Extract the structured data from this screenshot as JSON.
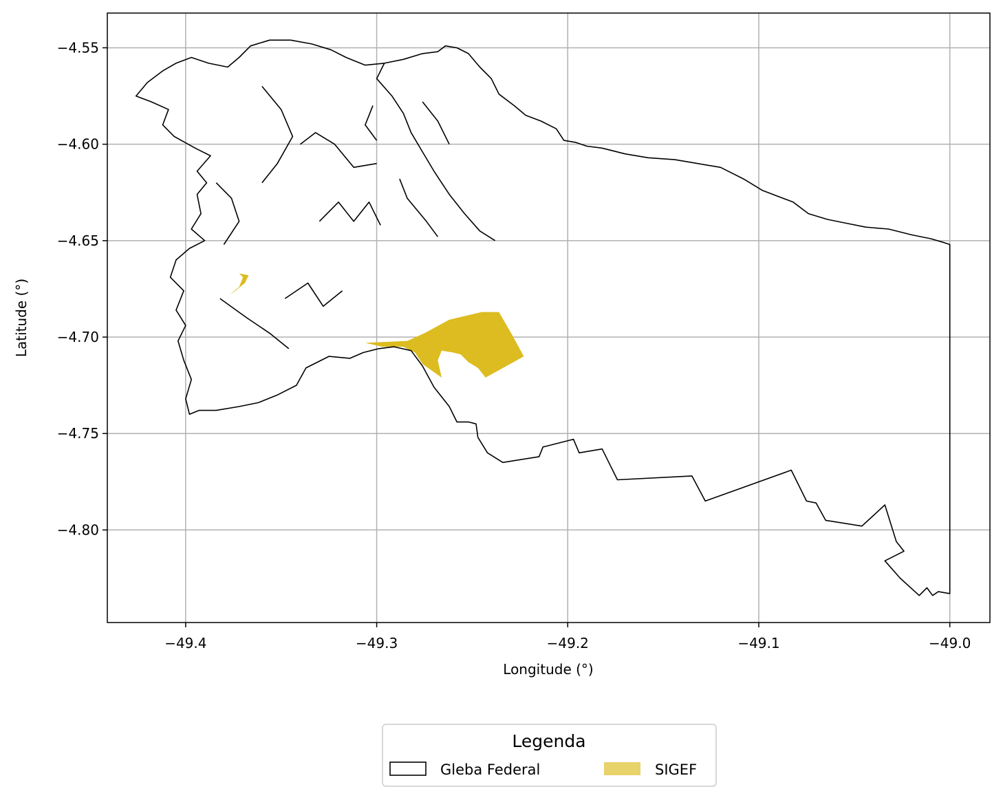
{
  "chart_data": {
    "type": "map",
    "xlabel": "Longitude (°)",
    "ylabel": "Latitude (°)",
    "xlim": [
      -49.441,
      -48.979
    ],
    "ylim": [
      -4.848,
      -4.532
    ],
    "xticks": [
      {
        "value": -49.4,
        "label": "−49.4"
      },
      {
        "value": -49.3,
        "label": "−49.3"
      },
      {
        "value": -49.2,
        "label": "−49.2"
      },
      {
        "value": -49.1,
        "label": "−49.1"
      },
      {
        "value": -49.0,
        "label": "−49.0"
      }
    ],
    "yticks": [
      {
        "value": -4.55,
        "label": "−4.55"
      },
      {
        "value": -4.6,
        "label": "−4.60"
      },
      {
        "value": -4.65,
        "label": "−4.65"
      },
      {
        "value": -4.7,
        "label": "−4.70"
      },
      {
        "value": -4.75,
        "label": "−4.75"
      },
      {
        "value": -4.8,
        "label": "−4.80"
      }
    ],
    "grid": true,
    "legend": {
      "title": "Legenda",
      "placement": "bottom-center",
      "entries": [
        {
          "label": "Gleba Federal",
          "style": "outline",
          "color": "#000000"
        },
        {
          "label": "SIGEF",
          "style": "fill",
          "color": "#e8d26a"
        }
      ]
    },
    "layers": [
      {
        "name": "Gleba Federal",
        "stroke": "#000000",
        "fill": "none",
        "polygons": [
          [
            [
              -49.296,
              -4.558
            ],
            [
              -49.286,
              -4.556
            ],
            [
              -49.276,
              -4.553
            ],
            [
              -49.268,
              -4.552
            ],
            [
              -49.264,
              -4.549
            ],
            [
              -49.258,
              -4.55
            ],
            [
              -49.252,
              -4.553
            ],
            [
              -49.246,
              -4.56
            ],
            [
              -49.24,
              -4.566
            ],
            [
              -49.236,
              -4.574
            ],
            [
              -49.228,
              -4.58
            ],
            [
              -49.222,
              -4.585
            ],
            [
              -49.214,
              -4.588
            ],
            [
              -49.206,
              -4.592
            ],
            [
              -49.202,
              -4.598
            ],
            [
              -49.196,
              -4.599
            ],
            [
              -49.19,
              -4.601
            ],
            [
              -49.182,
              -4.602
            ],
            [
              -49.17,
              -4.605
            ],
            [
              -49.158,
              -4.607
            ],
            [
              -49.144,
              -4.608
            ],
            [
              -49.132,
              -4.61
            ],
            [
              -49.12,
              -4.612
            ],
            [
              -49.108,
              -4.618
            ],
            [
              -49.098,
              -4.624
            ],
            [
              -49.09,
              -4.627
            ],
            [
              -49.082,
              -4.63
            ],
            [
              -49.074,
              -4.636
            ],
            [
              -49.064,
              -4.639
            ],
            [
              -49.054,
              -4.641
            ],
            [
              -49.044,
              -4.643
            ],
            [
              -49.032,
              -4.644
            ],
            [
              -49.02,
              -4.647
            ],
            [
              -49.01,
              -4.649
            ],
            [
              -49.003,
              -4.651
            ],
            [
              -49.0,
              -4.652
            ],
            [
              -49.0,
              -4.833
            ],
            [
              -49.006,
              -4.832
            ],
            [
              -49.009,
              -4.834
            ],
            [
              -49.012,
              -4.83
            ],
            [
              -49.016,
              -4.834
            ],
            [
              -49.026,
              -4.825
            ],
            [
              -49.034,
              -4.816
            ],
            [
              -49.024,
              -4.811
            ],
            [
              -49.028,
              -4.806
            ],
            [
              -49.034,
              -4.787
            ],
            [
              -49.046,
              -4.798
            ],
            [
              -49.065,
              -4.795
            ],
            [
              -49.07,
              -4.786
            ],
            [
              -49.075,
              -4.785
            ],
            [
              -49.083,
              -4.769
            ],
            [
              -49.128,
              -4.785
            ],
            [
              -49.135,
              -4.772
            ],
            [
              -49.174,
              -4.774
            ],
            [
              -49.182,
              -4.758
            ],
            [
              -49.194,
              -4.76
            ],
            [
              -49.197,
              -4.753
            ],
            [
              -49.213,
              -4.757
            ],
            [
              -49.215,
              -4.762
            ],
            [
              -49.234,
              -4.765
            ],
            [
              -49.242,
              -4.76
            ],
            [
              -49.247,
              -4.752
            ],
            [
              -49.248,
              -4.745
            ],
            [
              -49.252,
              -4.744
            ],
            [
              -49.258,
              -4.744
            ],
            [
              -49.262,
              -4.736
            ],
            [
              -49.27,
              -4.726
            ],
            [
              -49.276,
              -4.715
            ],
            [
              -49.282,
              -4.707
            ],
            [
              -49.291,
              -4.705
            ],
            [
              -49.299,
              -4.706
            ],
            [
              -49.307,
              -4.708
            ],
            [
              -49.314,
              -4.711
            ],
            [
              -49.325,
              -4.71
            ],
            [
              -49.337,
              -4.716
            ],
            [
              -49.342,
              -4.725
            ],
            [
              -49.352,
              -4.73
            ],
            [
              -49.362,
              -4.734
            ],
            [
              -49.372,
              -4.736
            ],
            [
              -49.384,
              -4.738
            ],
            [
              -49.393,
              -4.738
            ],
            [
              -49.398,
              -4.74
            ],
            [
              -49.4,
              -4.732
            ],
            [
              -49.397,
              -4.722
            ],
            [
              -49.401,
              -4.712
            ],
            [
              -49.404,
              -4.702
            ],
            [
              -49.4,
              -4.694
            ],
            [
              -49.405,
              -4.686
            ],
            [
              -49.401,
              -4.676
            ],
            [
              -49.408,
              -4.669
            ],
            [
              -49.405,
              -4.66
            ],
            [
              -49.398,
              -4.654
            ],
            [
              -49.39,
              -4.65
            ],
            [
              -49.397,
              -4.644
            ],
            [
              -49.392,
              -4.636
            ],
            [
              -49.394,
              -4.626
            ],
            [
              -49.389,
              -4.62
            ],
            [
              -49.394,
              -4.614
            ],
            [
              -49.387,
              -4.606
            ],
            [
              -49.395,
              -4.602
            ],
            [
              -49.406,
              -4.596
            ],
            [
              -49.412,
              -4.59
            ],
            [
              -49.409,
              -4.582
            ],
            [
              -49.418,
              -4.578
            ],
            [
              -49.426,
              -4.575
            ],
            [
              -49.42,
              -4.568
            ],
            [
              -49.412,
              -4.562
            ],
            [
              -49.405,
              -4.558
            ],
            [
              -49.397,
              -4.555
            ],
            [
              -49.388,
              -4.558
            ],
            [
              -49.378,
              -4.56
            ],
            [
              -49.372,
              -4.555
            ],
            [
              -49.366,
              -4.549
            ],
            [
              -49.356,
              -4.546
            ],
            [
              -49.345,
              -4.546
            ],
            [
              -49.334,
              -4.548
            ],
            [
              -49.324,
              -4.551
            ],
            [
              -49.316,
              -4.555
            ],
            [
              -49.306,
              -4.559
            ],
            [
              -49.296,
              -4.558
            ]
          ]
        ],
        "boundary_segments": [
          [
            [
              -49.296,
              -4.558
            ],
            [
              -49.3,
              -4.566
            ],
            [
              -49.292,
              -4.575
            ],
            [
              -49.286,
              -4.584
            ],
            [
              -49.282,
              -4.594
            ],
            [
              -49.276,
              -4.604
            ],
            [
              -49.27,
              -4.614
            ],
            [
              -49.262,
              -4.626
            ],
            [
              -49.254,
              -4.636
            ],
            [
              -49.246,
              -4.645
            ],
            [
              -49.238,
              -4.65
            ]
          ],
          [
            [
              -49.3,
              -4.598
            ],
            [
              -49.306,
              -4.59
            ],
            [
              -49.302,
              -4.58
            ]
          ],
          [
            [
              -49.288,
              -4.618
            ],
            [
              -49.284,
              -4.628
            ],
            [
              -49.274,
              -4.64
            ],
            [
              -49.268,
              -4.648
            ]
          ],
          [
            [
              -49.262,
              -4.6
            ],
            [
              -49.268,
              -4.588
            ],
            [
              -49.276,
              -4.578
            ]
          ],
          [
            [
              -49.33,
              -4.64
            ],
            [
              -49.32,
              -4.63
            ],
            [
              -49.312,
              -4.64
            ],
            [
              -49.304,
              -4.63
            ],
            [
              -49.298,
              -4.642
            ]
          ],
          [
            [
              -49.34,
              -4.6
            ],
            [
              -49.332,
              -4.594
            ],
            [
              -49.322,
              -4.6
            ],
            [
              -49.312,
              -4.612
            ],
            [
              -49.3,
              -4.61
            ]
          ],
          [
            [
              -49.348,
              -4.68
            ],
            [
              -49.336,
              -4.672
            ],
            [
              -49.328,
              -4.684
            ],
            [
              -49.318,
              -4.676
            ]
          ],
          [
            [
              -49.382,
              -4.68
            ],
            [
              -49.368,
              -4.69
            ],
            [
              -49.356,
              -4.698
            ],
            [
              -49.346,
              -4.706
            ]
          ],
          [
            [
              -49.36,
              -4.62
            ],
            [
              -49.352,
              -4.61
            ],
            [
              -49.344,
              -4.596
            ],
            [
              -49.35,
              -4.582
            ],
            [
              -49.36,
              -4.57
            ]
          ],
          [
            [
              -49.384,
              -4.62
            ],
            [
              -49.376,
              -4.628
            ],
            [
              -49.372,
              -4.64
            ],
            [
              -49.38,
              -4.652
            ]
          ]
        ]
      },
      {
        "name": "SIGEF",
        "fill": "#dcbc20",
        "polygons": [
          [
            [
              -49.306,
              -4.703
            ],
            [
              -49.284,
              -4.702
            ],
            [
              -49.275,
              -4.698
            ],
            [
              -49.262,
              -4.691
            ],
            [
              -49.245,
              -4.687
            ],
            [
              -49.236,
              -4.687
            ],
            [
              -49.229,
              -4.699
            ],
            [
              -49.223,
              -4.71
            ],
            [
              -49.243,
              -4.721
            ],
            [
              -49.247,
              -4.716
            ],
            [
              -49.252,
              -4.713
            ],
            [
              -49.256,
              -4.709
            ],
            [
              -49.26,
              -4.708
            ],
            [
              -49.266,
              -4.707
            ],
            [
              -49.268,
              -4.712
            ],
            [
              -49.266,
              -4.721
            ],
            [
              -49.276,
              -4.714
            ],
            [
              -49.28,
              -4.708
            ],
            [
              -49.286,
              -4.705
            ],
            [
              -49.297,
              -4.705
            ],
            [
              -49.306,
              -4.703
            ]
          ],
          [
            [
              -49.377,
              -4.678
            ],
            [
              -49.372,
              -4.674
            ],
            [
              -49.37,
              -4.669
            ],
            [
              -49.372,
              -4.667
            ],
            [
              -49.367,
              -4.668
            ],
            [
              -49.369,
              -4.672
            ],
            [
              -49.374,
              -4.676
            ],
            [
              -49.377,
              -4.678
            ]
          ]
        ]
      }
    ]
  }
}
